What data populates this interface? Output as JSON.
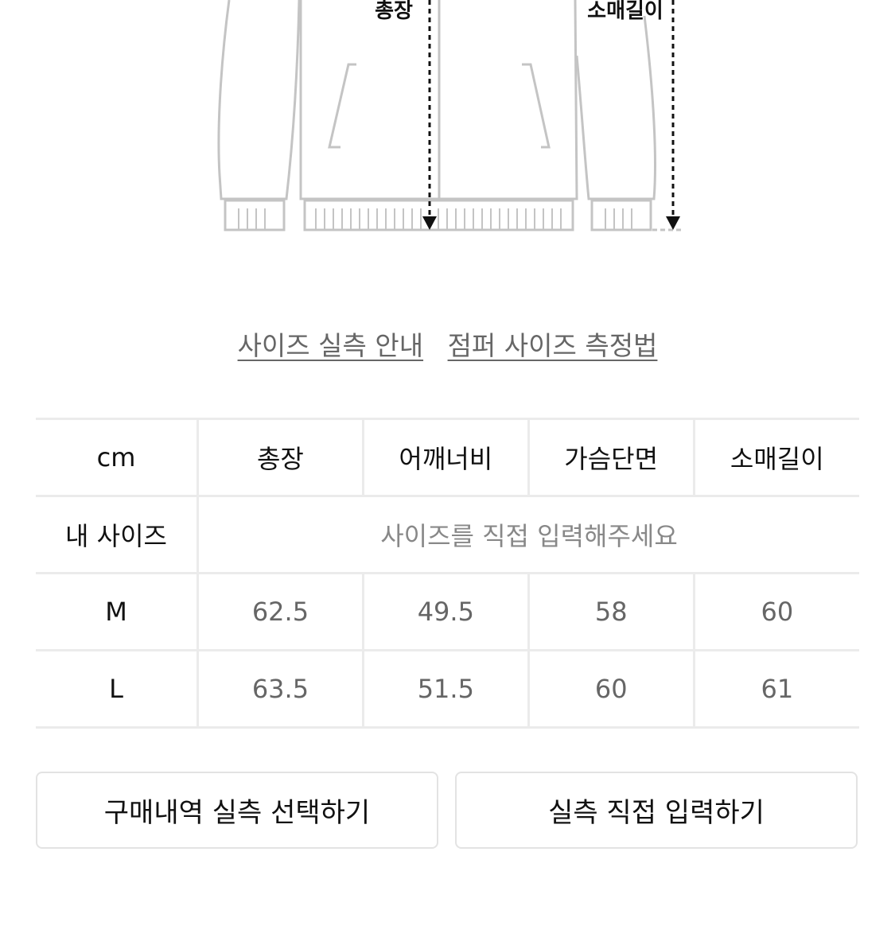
{
  "diagram": {
    "length_label": "총장",
    "sleeve_label": "소매길이"
  },
  "links": [
    {
      "label": "사이즈 실측 안내"
    },
    {
      "label": "점퍼 사이즈 측정법"
    }
  ],
  "size_table": {
    "headers": [
      "cm",
      "총장",
      "어깨너비",
      "가슴단면",
      "소매길이"
    ],
    "my_size": {
      "label": "내 사이즈",
      "placeholder": "사이즈를 직접 입력해주세요"
    },
    "rows": [
      {
        "size": "M",
        "values": [
          "62.5",
          "49.5",
          "58",
          "60"
        ]
      },
      {
        "size": "L",
        "values": [
          "63.5",
          "51.5",
          "60",
          "61"
        ]
      }
    ]
  },
  "buttons": {
    "purchase_history": "구매내역 실측 선택하기",
    "direct_input": "실측 직접 입력하기"
  }
}
